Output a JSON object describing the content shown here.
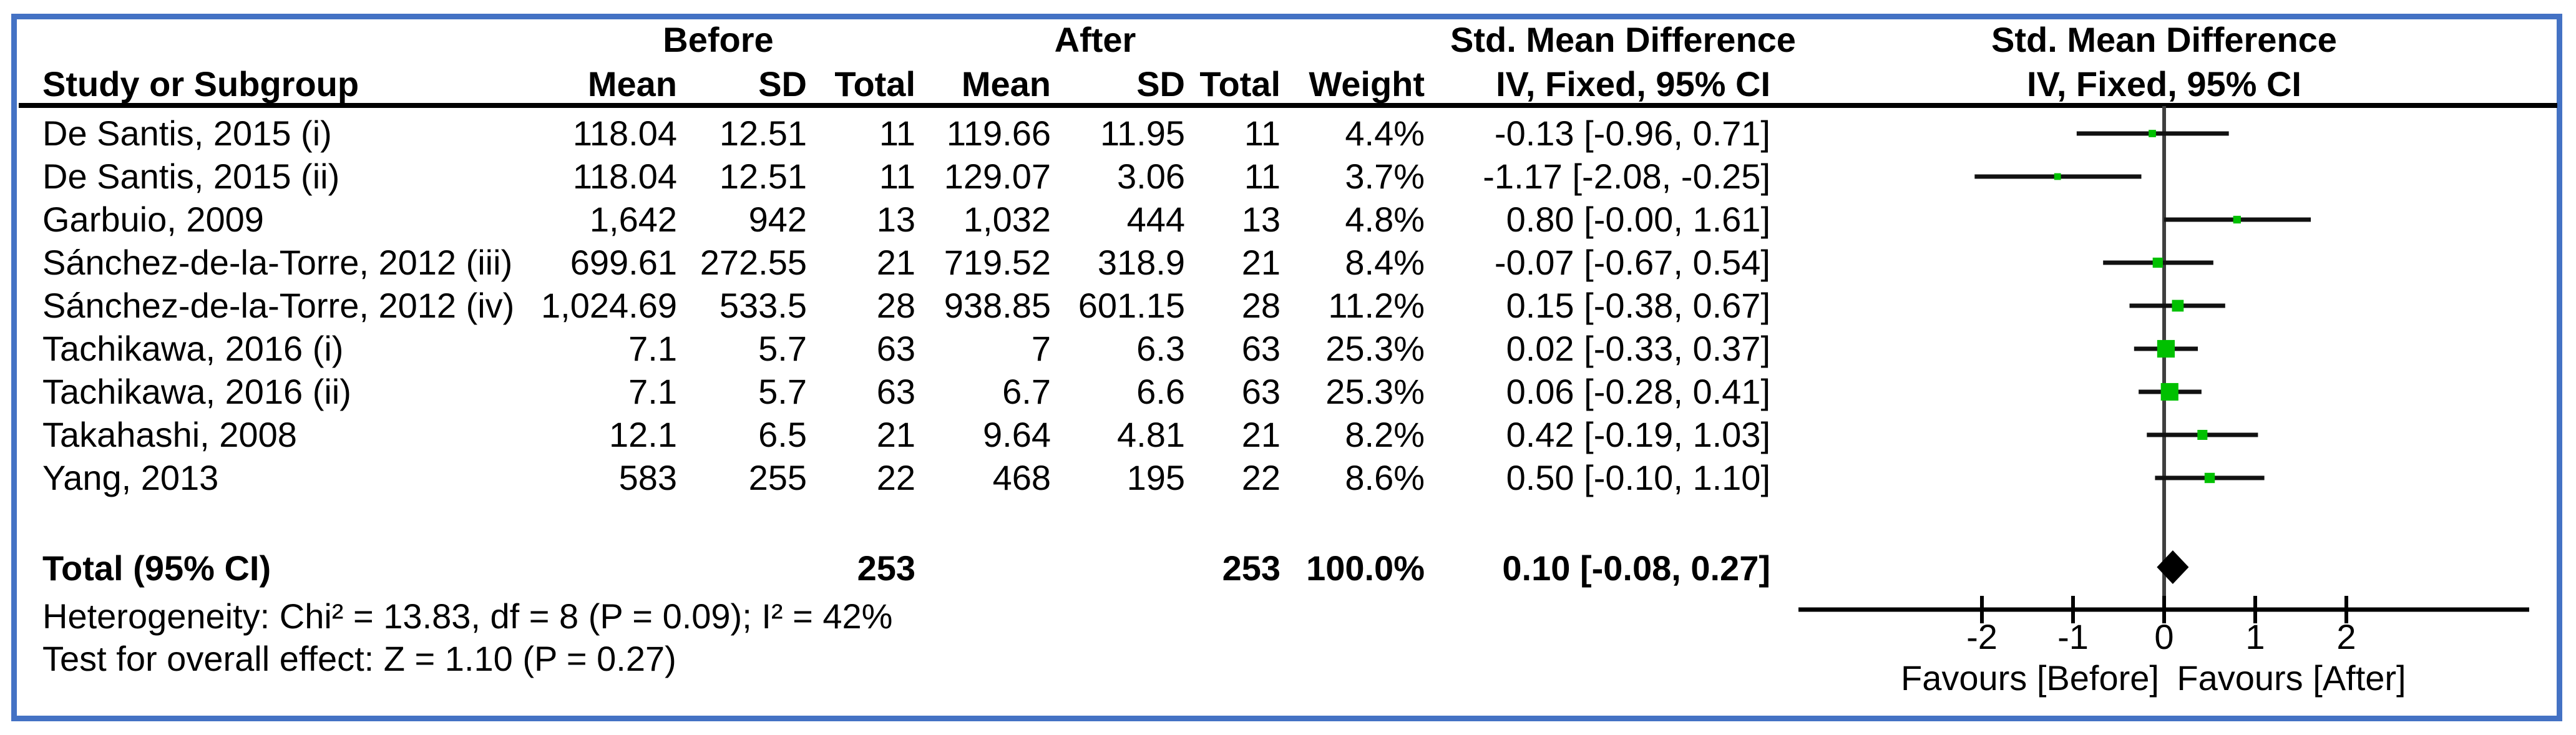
{
  "colors": {
    "frame_border": "#4472C4",
    "marker_green": "#00C000",
    "zero_line_gray": "#3F3F3F",
    "text": "#000000"
  },
  "header": {
    "group_before": "Before",
    "group_after": "After",
    "smd_text_col": "Std. Mean Difference",
    "smd_plot_col": "Std. Mean Difference",
    "study": "Study or Subgroup",
    "mean_before": "Mean",
    "sd_before": "SD",
    "total_before": "Total",
    "mean_after": "Mean",
    "sd_after": "SD",
    "total_after": "Total",
    "weight": "Weight",
    "method_text_col": "IV, Fixed, 95% CI",
    "method_plot_col": "IV, Fixed, 95% CI"
  },
  "chart_data": {
    "type": "forest",
    "subtype": "meta-analysis forest plot",
    "title": "Std. Mean Difference",
    "method": "IV, Fixed, 95% CI",
    "axis": {
      "min": -2,
      "max": 2,
      "ticks": [
        -2,
        -1,
        0,
        1,
        2
      ],
      "favours_left": "Favours [Before]",
      "favours_right": "Favours [After]"
    },
    "studies": [
      {
        "study": "De Santis, 2015 (i)",
        "before_mean": "118.04",
        "before_sd": "12.51",
        "before_total": "11",
        "after_mean": "119.66",
        "after_sd": "11.95",
        "after_total": "11",
        "weight": "4.4%",
        "weight_value": 4.4,
        "ci_label": "-0.13 [-0.96, 0.71]",
        "smd": -0.13,
        "lo": -0.96,
        "hi": 0.71
      },
      {
        "study": "De Santis, 2015 (ii)",
        "before_mean": "118.04",
        "before_sd": "12.51",
        "before_total": "11",
        "after_mean": "129.07",
        "after_sd": "3.06",
        "after_total": "11",
        "weight": "3.7%",
        "weight_value": 3.7,
        "ci_label": "-1.17 [-2.08, -0.25]",
        "smd": -1.17,
        "lo": -2.08,
        "hi": -0.25
      },
      {
        "study": "Garbuio, 2009",
        "before_mean": "1,642",
        "before_sd": "942",
        "before_total": "13",
        "after_mean": "1,032",
        "after_sd": "444",
        "after_total": "13",
        "weight": "4.8%",
        "weight_value": 4.8,
        "ci_label": "0.80 [-0.00, 1.61]",
        "smd": 0.8,
        "lo": 0.0,
        "hi": 1.61
      },
      {
        "study": "Sánchez-de-la-Torre, 2012 (iii)",
        "before_mean": "699.61",
        "before_sd": "272.55",
        "before_total": "21",
        "after_mean": "719.52",
        "after_sd": "318.9",
        "after_total": "21",
        "weight": "8.4%",
        "weight_value": 8.4,
        "ci_label": "-0.07 [-0.67, 0.54]",
        "smd": -0.07,
        "lo": -0.67,
        "hi": 0.54
      },
      {
        "study": "Sánchez-de-la-Torre, 2012 (iv)",
        "before_mean": "1,024.69",
        "before_sd": "533.5",
        "before_total": "28",
        "after_mean": "938.85",
        "after_sd": "601.15",
        "after_total": "28",
        "weight": "11.2%",
        "weight_value": 11.2,
        "ci_label": "0.15 [-0.38, 0.67]",
        "smd": 0.15,
        "lo": -0.38,
        "hi": 0.67
      },
      {
        "study": "Tachikawa, 2016 (i)",
        "before_mean": "7.1",
        "before_sd": "5.7",
        "before_total": "63",
        "after_mean": "7",
        "after_sd": "6.3",
        "after_total": "63",
        "weight": "25.3%",
        "weight_value": 25.3,
        "ci_label": "0.02 [-0.33, 0.37]",
        "smd": 0.02,
        "lo": -0.33,
        "hi": 0.37
      },
      {
        "study": "Tachikawa, 2016 (ii)",
        "before_mean": "7.1",
        "before_sd": "5.7",
        "before_total": "63",
        "after_mean": "6.7",
        "after_sd": "6.6",
        "after_total": "63",
        "weight": "25.3%",
        "weight_value": 25.3,
        "ci_label": "0.06 [-0.28, 0.41]",
        "smd": 0.06,
        "lo": -0.28,
        "hi": 0.41
      },
      {
        "study": "Takahashi, 2008",
        "before_mean": "12.1",
        "before_sd": "6.5",
        "before_total": "21",
        "after_mean": "9.64",
        "after_sd": "4.81",
        "after_total": "21",
        "weight": "8.2%",
        "weight_value": 8.2,
        "ci_label": "0.42 [-0.19, 1.03]",
        "smd": 0.42,
        "lo": -0.19,
        "hi": 1.03
      },
      {
        "study": "Yang, 2013",
        "before_mean": "583",
        "before_sd": "255",
        "before_total": "22",
        "after_mean": "468",
        "after_sd": "195",
        "after_total": "22",
        "weight": "8.6%",
        "weight_value": 8.6,
        "ci_label": "0.50 [-0.10, 1.10]",
        "smd": 0.5,
        "lo": -0.1,
        "hi": 1.1
      }
    ],
    "total": {
      "label": "Total (95% CI)",
      "before_total": "253",
      "after_total": "253",
      "weight": "100.0%",
      "ci_label": "0.10 [-0.08, 0.27]",
      "smd": 0.1,
      "lo": -0.08,
      "hi": 0.27
    },
    "heterogeneity": "Heterogeneity: Chi² = 13.83, df = 8 (P = 0.09); I² = 42%",
    "overall_effect": "Test for overall effect: Z = 1.10 (P = 0.27)"
  }
}
